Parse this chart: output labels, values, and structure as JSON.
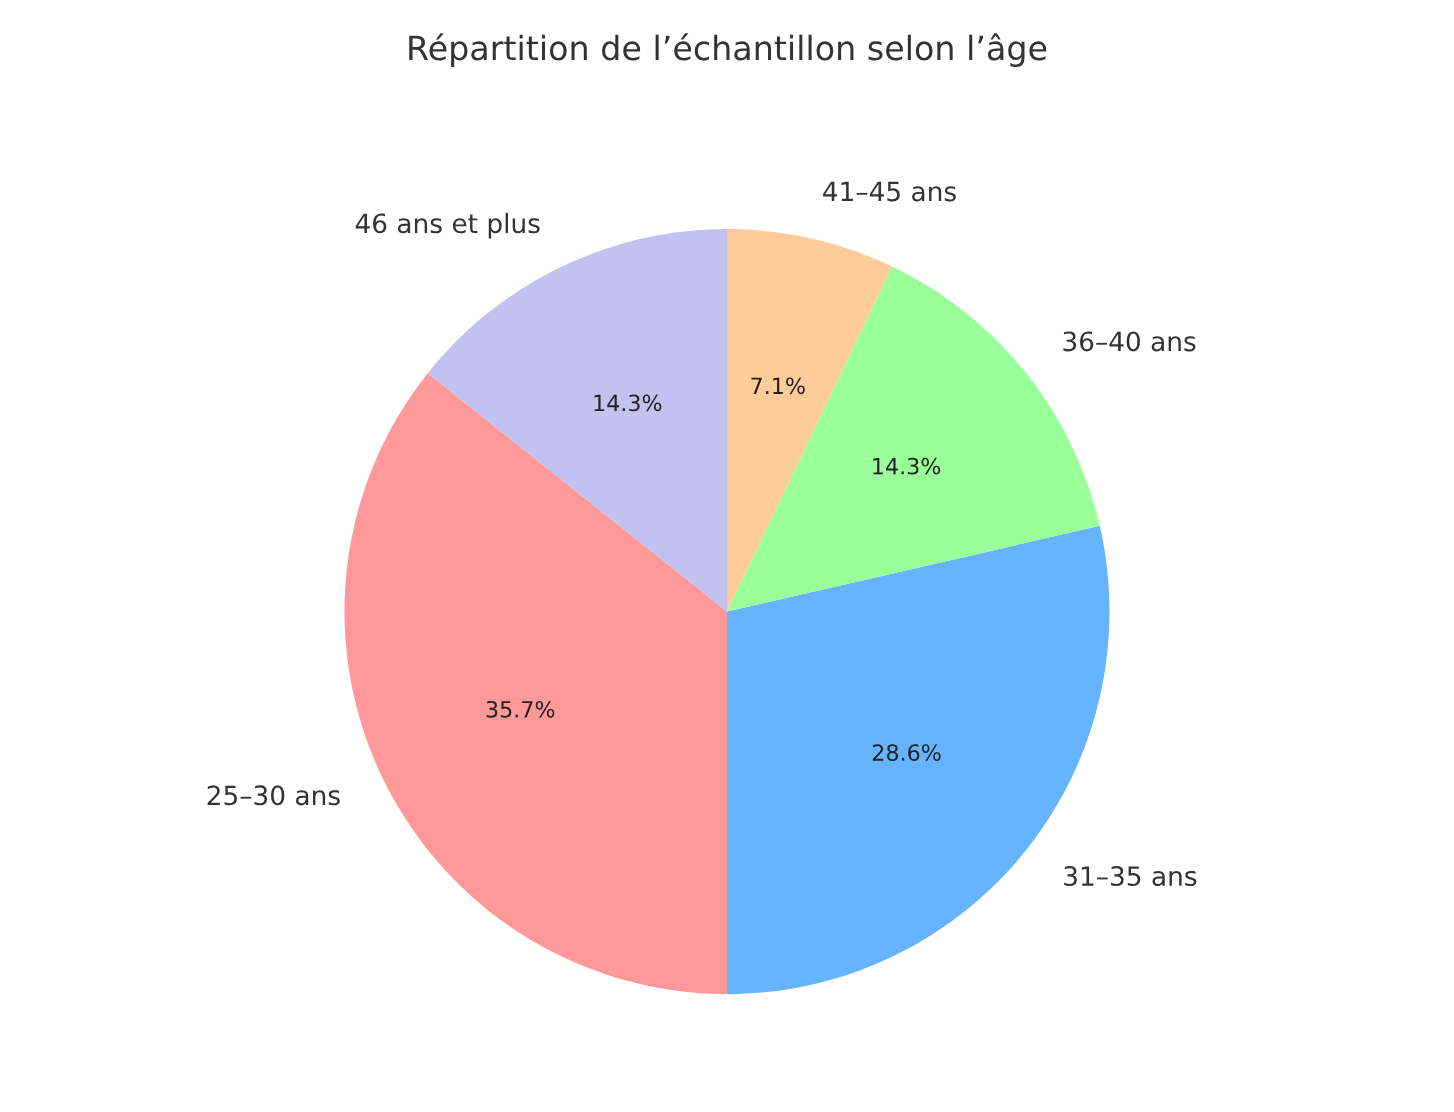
{
  "chart_data": {
    "type": "pie",
    "title": "Répartition de l’échantillon selon l’âge",
    "categories": [
      "46 ans et plus",
      "25–30 ans",
      "31–35 ans",
      "36–40 ans",
      "41–45 ans"
    ],
    "values": [
      14.3,
      35.7,
      28.6,
      14.3,
      7.1
    ],
    "colors": [
      "#c2c2f0",
      "#ff9999",
      "#66b3ff",
      "#99ff99",
      "#ffcc99"
    ],
    "value_labels": [
      "14.3%",
      "35.7%",
      "28.6%",
      "14.3%",
      "7.1%"
    ]
  }
}
